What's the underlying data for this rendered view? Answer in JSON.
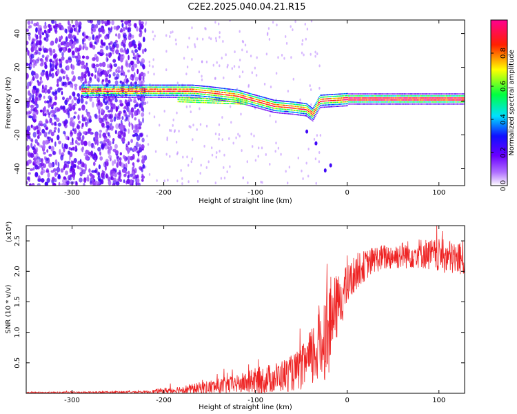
{
  "title": "C2E2.2025.040.04.21.R15",
  "chart_data": [
    {
      "type": "heatmap",
      "xlabel": "Height of straight line (km)",
      "ylabel": "Frequency (Hz)",
      "xlim": [
        -350,
        128
      ],
      "ylim": [
        -50,
        48
      ],
      "xticks": [
        -300,
        -200,
        -100,
        0,
        100
      ],
      "yticks": [
        -40,
        -20,
        0,
        20,
        40
      ],
      "colorbar": {
        "label": "Normalized spectral amplitude",
        "range": [
          0,
          1
        ],
        "ticks": [
          0.0,
          0.2,
          0.4,
          0.6,
          0.8
        ],
        "tick_labels": [
          "0.0",
          "0.2",
          "0.4",
          "0.6",
          "0.8"
        ],
        "colormap": [
          "#ffffff",
          "#7a00ff",
          "#0000ff",
          "#00ffff",
          "#00ff00",
          "#ffff00",
          "#ff0000",
          "#ff00aa"
        ]
      },
      "ridge": {
        "x": [
          -290,
          -240,
          -200,
          -170,
          -150,
          -120,
          -100,
          -80,
          -60,
          -45,
          -38,
          -30,
          0,
          50,
          128
        ],
        "y": [
          6,
          6,
          6,
          6,
          5,
          3,
          0,
          -3,
          -4,
          -5,
          -8,
          0,
          1,
          1,
          1
        ]
      },
      "noise_region_x": [
        -350,
        -220
      ]
    },
    {
      "type": "line",
      "xlabel": "Height of straight line (km)",
      "ylabel": "SNR (10 * v/v)",
      "y_multiplier_label": "(x10⁴)",
      "xlim": [
        -350,
        128
      ],
      "ylim": [
        0,
        2.75
      ],
      "xticks": [
        -300,
        -200,
        -100,
        0,
        100
      ],
      "yticks": [
        0.5,
        1.0,
        1.5,
        2.0,
        2.5
      ],
      "ytick_labels": [
        "0.5",
        "1.0",
        "1.5",
        "2.0",
        "2.5"
      ],
      "color": "#ee2222",
      "envelope": {
        "x": [
          -350,
          -220,
          -200,
          -170,
          -150,
          -120,
          -100,
          -80,
          -60,
          -50,
          -40,
          -30,
          -20,
          -10,
          0,
          10,
          20,
          30,
          50,
          80,
          100,
          128
        ],
        "mean": [
          0.01,
          0.02,
          0.04,
          0.07,
          0.1,
          0.15,
          0.2,
          0.25,
          0.33,
          0.4,
          0.55,
          0.8,
          1.1,
          1.45,
          1.75,
          2.0,
          2.1,
          2.2,
          2.25,
          2.3,
          2.25,
          2.2
        ],
        "amp": [
          0.01,
          0.02,
          0.05,
          0.08,
          0.12,
          0.15,
          0.22,
          0.25,
          0.3,
          0.35,
          0.5,
          0.7,
          0.8,
          0.5,
          0.35,
          0.3,
          0.25,
          0.22,
          0.22,
          0.25,
          0.28,
          0.3
        ]
      }
    }
  ]
}
